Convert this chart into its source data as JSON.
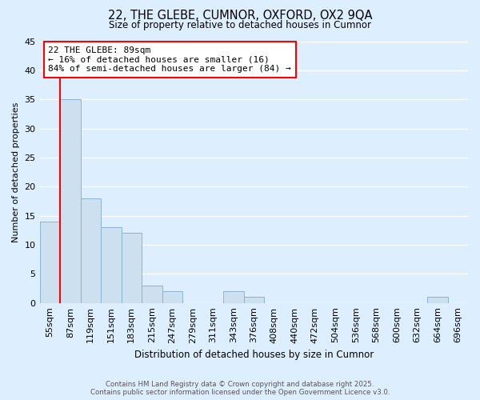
{
  "title": "22, THE GLEBE, CUMNOR, OXFORD, OX2 9QA",
  "subtitle": "Size of property relative to detached houses in Cumnor",
  "xlabel": "Distribution of detached houses by size in Cumnor",
  "ylabel": "Number of detached properties",
  "bar_color": "#cce0f0",
  "bar_edgecolor": "#8ab4d4",
  "background_color": "#ddeeff",
  "grid_color": "#ffffff",
  "bin_labels": [
    "55sqm",
    "87sqm",
    "119sqm",
    "151sqm",
    "183sqm",
    "215sqm",
    "247sqm",
    "279sqm",
    "311sqm",
    "343sqm",
    "376sqm",
    "408sqm",
    "440sqm",
    "472sqm",
    "504sqm",
    "536sqm",
    "568sqm",
    "600sqm",
    "632sqm",
    "664sqm",
    "696sqm"
  ],
  "bar_values": [
    14,
    35,
    18,
    13,
    12,
    3,
    2,
    0,
    0,
    2,
    1,
    0,
    0,
    0,
    0,
    0,
    0,
    0,
    0,
    1,
    0
  ],
  "ylim": [
    0,
    45
  ],
  "yticks": [
    0,
    5,
    10,
    15,
    20,
    25,
    30,
    35,
    40,
    45
  ],
  "property_line_x": 0.5,
  "property_line_label": "22 THE GLEBE: 89sqm",
  "annotation_line1": "← 16% of detached houses are smaller (16)",
  "annotation_line2": "84% of semi-detached houses are larger (84) →",
  "footer_line1": "Contains HM Land Registry data © Crown copyright and database right 2025.",
  "footer_line2": "Contains public sector information licensed under the Open Government Licence v3.0."
}
